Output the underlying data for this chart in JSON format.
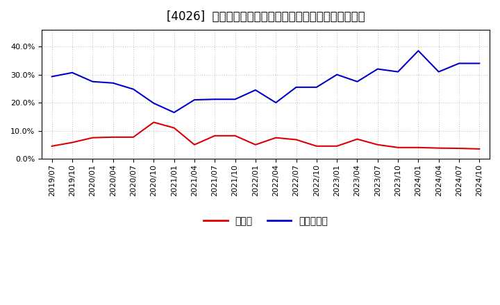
{
  "title": "[4026]  現領金、有利子負債の総資産に対する比率の推移",
  "x_labels": [
    "2019/07",
    "2019/10",
    "2020/01",
    "2020/04",
    "2020/07",
    "2020/10",
    "2021/01",
    "2021/04",
    "2021/07",
    "2021/10",
    "2022/01",
    "2022/04",
    "2022/07",
    "2022/10",
    "2023/01",
    "2023/04",
    "2023/07",
    "2023/10",
    "2024/01",
    "2024/04",
    "2024/07",
    "2024/10"
  ],
  "cash": [
    0.045,
    0.058,
    0.075,
    0.077,
    0.077,
    0.13,
    0.11,
    0.05,
    0.082,
    0.082,
    0.05,
    0.075,
    0.068,
    0.045,
    0.045,
    0.07,
    0.05,
    0.04,
    0.04,
    0.038,
    0.037,
    0.035
  ],
  "debt": [
    0.293,
    0.307,
    0.275,
    0.27,
    0.248,
    0.198,
    0.165,
    0.21,
    0.212,
    0.212,
    0.245,
    0.2,
    0.255,
    0.255,
    0.3,
    0.275,
    0.32,
    0.31,
    0.385,
    0.31,
    0.34,
    0.34
  ],
  "cash_color": "#dd0000",
  "debt_color": "#0000cc",
  "background_color": "#ffffff",
  "plot_bg_color": "#ffffff",
  "grid_color": "#aaaaaa",
  "legend_cash": "現領金",
  "legend_debt": "有利子負債",
  "ylim": [
    0.0,
    0.46
  ],
  "yticks": [
    0.0,
    0.1,
    0.2,
    0.3,
    0.4
  ],
  "title_fontsize": 12,
  "legend_fontsize": 10,
  "tick_fontsize": 8,
  "line_width": 1.5
}
